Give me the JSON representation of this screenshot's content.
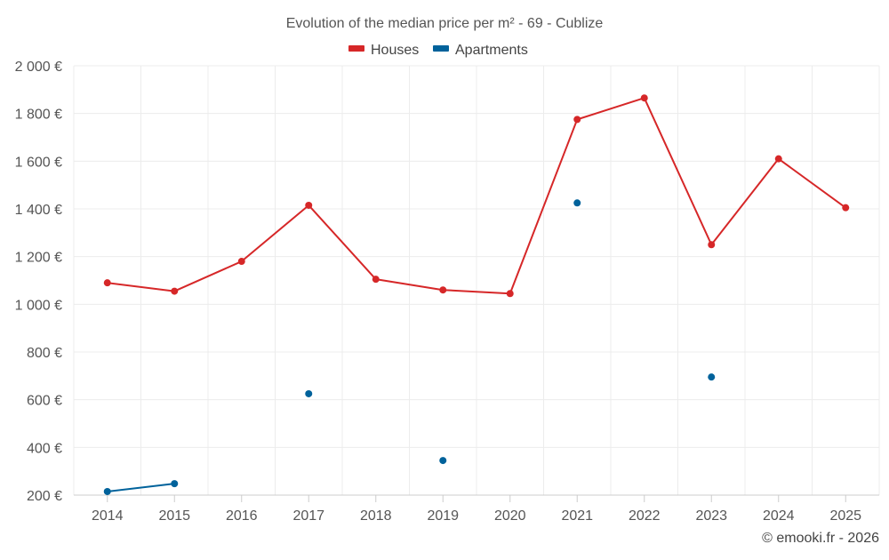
{
  "chart_data": {
    "type": "line",
    "title": "Evolution of the median price per m² - 69 - Cublize",
    "categories": [
      "2014",
      "2015",
      "2016",
      "2017",
      "2018",
      "2019",
      "2020",
      "2021",
      "2022",
      "2023",
      "2024",
      "2025"
    ],
    "ylim": [
      200,
      2000
    ],
    "yticks": [
      200,
      400,
      600,
      800,
      1000,
      1200,
      1400,
      1600,
      1800,
      2000
    ],
    "ytick_labels": [
      "200 €",
      "400 €",
      "600 €",
      "800 €",
      "1 000 €",
      "1 200 €",
      "1 400 €",
      "1 600 €",
      "1 800 €",
      "2 000 €"
    ],
    "grid": true,
    "legend_position": "top-center",
    "series": [
      {
        "name": "Houses",
        "color": "#d62728",
        "values": [
          1090,
          1055,
          1180,
          1415,
          1105,
          1060,
          1045,
          1775,
          1865,
          1250,
          1610,
          1405
        ]
      },
      {
        "name": "Apartments",
        "color": "#00629b",
        "values": [
          215,
          248,
          null,
          625,
          null,
          345,
          null,
          1425,
          null,
          695,
          null,
          null
        ]
      }
    ]
  },
  "credit": "© emooki.fr - 2026"
}
